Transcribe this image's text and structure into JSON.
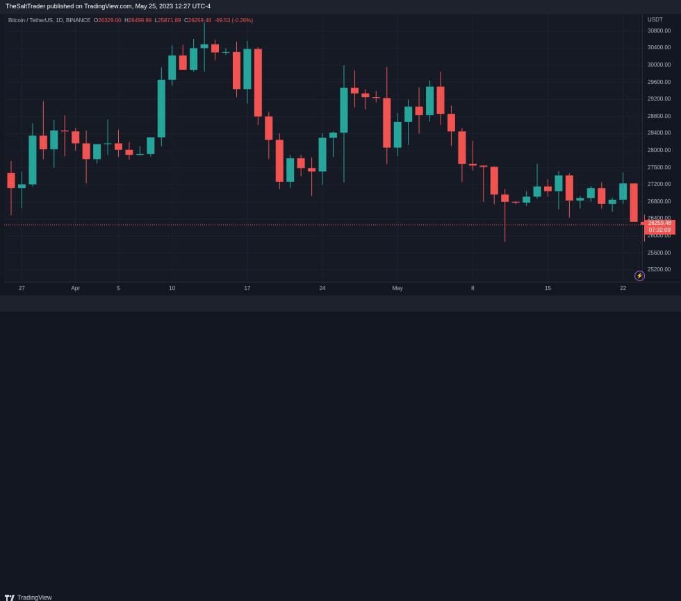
{
  "header": {
    "publisher": "TheSaltTrader published on TradingView.com, May 25, 2023 12:27 UTC-4"
  },
  "legend": {
    "symbol": "Bitcoin / TetherUS, 1D, BINANCE",
    "open_label": "O",
    "open": "26329.00",
    "high_label": "H",
    "high": "26499.99",
    "low_label": "L",
    "low": "25871.89",
    "close_label": "C",
    "close": "26259.48",
    "change": "-69.53 (-0.26%)"
  },
  "y_axis": {
    "currency": "USDT",
    "ticks": [
      "30800.00",
      "30400.00",
      "30000.00",
      "29600.00",
      "29200.00",
      "28800.00",
      "28400.00",
      "28000.00",
      "27600.00",
      "27200.00",
      "26800.00",
      "26400.00",
      "26000.00",
      "25600.00",
      "25200.00"
    ]
  },
  "x_axis": {
    "ticks": [
      "27",
      "Apr",
      "5",
      "10",
      "17",
      "24",
      "May",
      "8",
      "15",
      "22"
    ]
  },
  "price_tag": {
    "price": "26259.48",
    "countdown": "07:32:09"
  },
  "footer": {
    "logo_text": "TradingView"
  },
  "colors": {
    "up": "#26a69a",
    "down": "#f05350",
    "background": "#131722"
  },
  "icons": {
    "alert": "lightning-bolt-icon",
    "logo": "tradingview-logo-icon"
  },
  "chart_data": {
    "type": "candlestick",
    "symbol": "Bitcoin / TetherUS",
    "interval": "1D",
    "exchange": "BINANCE",
    "ylim": [
      25000,
      31000
    ],
    "ohlc": [
      [
        "2023-03-26",
        27480,
        27760,
        26490,
        27120
      ],
      [
        "2023-03-27",
        27120,
        27500,
        26650,
        27210
      ],
      [
        "2023-03-28",
        27210,
        28640,
        27160,
        28350
      ],
      [
        "2023-03-29",
        28350,
        29160,
        27800,
        28030
      ],
      [
        "2023-03-30",
        28030,
        28720,
        27600,
        28470
      ],
      [
        "2023-03-31",
        28470,
        28830,
        27870,
        28450
      ],
      [
        "2023-04-01",
        28450,
        28530,
        28000,
        28170
      ],
      [
        "2023-04-02",
        28170,
        28470,
        27230,
        27800
      ],
      [
        "2023-04-03",
        27800,
        28100,
        27700,
        28150
      ],
      [
        "2023-04-04",
        28150,
        28730,
        27900,
        28170
      ],
      [
        "2023-04-05",
        28170,
        28480,
        27850,
        28020
      ],
      [
        "2023-04-06",
        28020,
        28200,
        27790,
        27900
      ],
      [
        "2023-04-07",
        27900,
        28100,
        27880,
        27920
      ],
      [
        "2023-04-08",
        27920,
        28300,
        27860,
        28310
      ],
      [
        "2023-04-09",
        28310,
        29950,
        28100,
        29660
      ],
      [
        "2023-04-10",
        29660,
        30470,
        29520,
        30230
      ],
      [
        "2023-04-11",
        30230,
        30480,
        29900,
        29890
      ],
      [
        "2023-04-12",
        29890,
        30620,
        29850,
        30400
      ],
      [
        "2023-04-13",
        30400,
        31000,
        29850,
        30490
      ],
      [
        "2023-04-14",
        30490,
        30600,
        30110,
        30300
      ],
      [
        "2023-04-15",
        30300,
        30400,
        30240,
        30310
      ],
      [
        "2023-04-16",
        30310,
        30550,
        29250,
        29440
      ],
      [
        "2023-04-17",
        29440,
        30570,
        29100,
        30380
      ],
      [
        "2023-04-18",
        30380,
        30420,
        28600,
        28800
      ],
      [
        "2023-04-19",
        28800,
        28900,
        27800,
        28250
      ],
      [
        "2023-04-20",
        28250,
        28400,
        27100,
        27270
      ],
      [
        "2023-04-21",
        27270,
        27900,
        27130,
        27820
      ],
      [
        "2023-04-22",
        27820,
        27900,
        27400,
        27590
      ],
      [
        "2023-04-23",
        27590,
        27840,
        26940,
        27510
      ],
      [
        "2023-04-24",
        27510,
        28400,
        27200,
        28300
      ],
      [
        "2023-04-25",
        28300,
        28450,
        27850,
        28420
      ],
      [
        "2023-04-26",
        28420,
        30000,
        27250,
        29470
      ],
      [
        "2023-04-27",
        29470,
        29880,
        29010,
        29340
      ],
      [
        "2023-04-28",
        29340,
        29440,
        28960,
        29250
      ],
      [
        "2023-04-29",
        29250,
        29400,
        29130,
        29230
      ],
      [
        "2023-04-30",
        29230,
        29960,
        27680,
        28070
      ],
      [
        "2023-05-01",
        28070,
        28880,
        27870,
        28670
      ],
      [
        "2023-05-02",
        28670,
        29200,
        28130,
        29030
      ],
      [
        "2023-05-03",
        29030,
        29480,
        28400,
        28830
      ],
      [
        "2023-05-04",
        28830,
        29650,
        28680,
        29500
      ],
      [
        "2023-05-05",
        29500,
        29850,
        28600,
        28860
      ],
      [
        "2023-05-06",
        28860,
        29050,
        28110,
        28450
      ],
      [
        "2023-05-07",
        28450,
        28530,
        27260,
        27690
      ],
      [
        "2023-05-08",
        27690,
        28230,
        27530,
        27650
      ],
      [
        "2023-05-09",
        27650,
        27650,
        26800,
        27620
      ],
      [
        "2023-05-10",
        27620,
        27630,
        26740,
        26970
      ],
      [
        "2023-05-11",
        26970,
        27100,
        25860,
        26800
      ],
      [
        "2023-05-12",
        26800,
        26820,
        26740,
        26780
      ],
      [
        "2023-05-13",
        26780,
        27050,
        26700,
        26920
      ],
      [
        "2023-05-14",
        26920,
        27690,
        26870,
        27160
      ],
      [
        "2023-05-15",
        27160,
        27330,
        26920,
        27050
      ],
      [
        "2023-05-16",
        27050,
        27520,
        26620,
        27420
      ],
      [
        "2023-05-17",
        27420,
        27470,
        26430,
        26830
      ],
      [
        "2023-05-18",
        26830,
        26940,
        26640,
        26890
      ],
      [
        "2023-05-19",
        26890,
        27170,
        26800,
        27120
      ],
      [
        "2023-05-20",
        27120,
        27260,
        26640,
        26750
      ],
      [
        "2023-05-21",
        26750,
        26900,
        26570,
        26850
      ],
      [
        "2023-05-22",
        26850,
        27490,
        26750,
        27230
      ],
      [
        "2023-05-23",
        27230,
        27230,
        26330,
        26330
      ],
      [
        "2023-05-24",
        26330,
        26500,
        25870,
        26260
      ]
    ]
  }
}
